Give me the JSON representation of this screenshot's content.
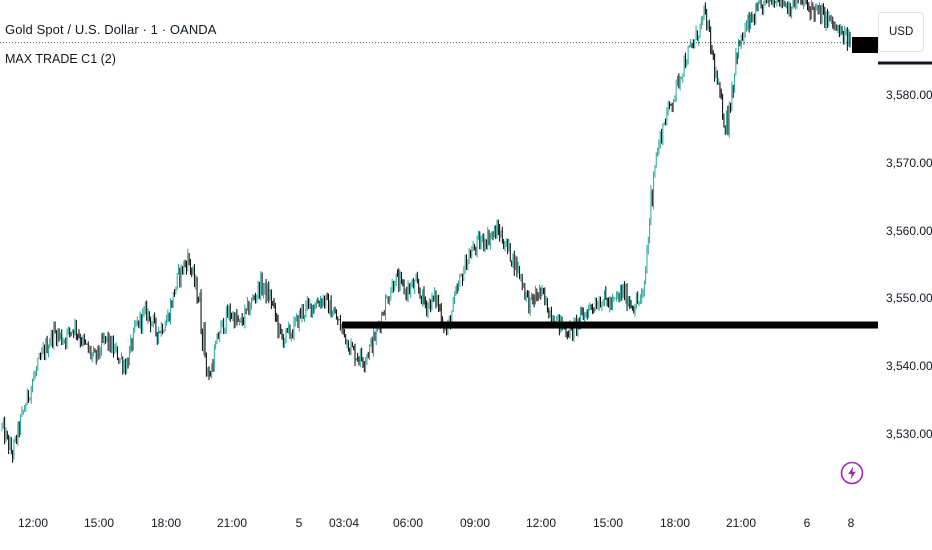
{
  "header": {
    "symbol_title": "Gold Spot / U.S. Dollar · 1 · OANDA",
    "indicator_label": "MAX TRADE C1 (2)"
  },
  "price_axis": {
    "currency": "USD",
    "labels": [
      "3,580.000",
      "3,570.000",
      "3,560.000",
      "3,550.000",
      "3,540.000",
      "3,530.000"
    ]
  },
  "time_axis": {
    "labels": [
      "12:00",
      "15:00",
      "18:00",
      "21:00",
      "5",
      "03:04",
      "06:00",
      "09:00",
      "12:00",
      "15:00",
      "18:00",
      "21:00",
      "6",
      "8"
    ]
  },
  "colors": {
    "up_candle": "#26a69a",
    "down_candle": "#000000",
    "level_line": "#000000",
    "icon_accent": "#9c27b0"
  },
  "icons": {
    "lightning": "lightning-icon"
  },
  "chart_data": {
    "type": "line",
    "ylim": [
      3522,
      3595
    ],
    "y_ticks": [
      3580,
      3570,
      3560,
      3550,
      3540,
      3530
    ],
    "x_ticks": [
      "12:00",
      "15:00",
      "18:00",
      "21:00",
      "5",
      "03:04",
      "06:00",
      "09:00",
      "12:00",
      "15:00",
      "18:00",
      "21:00",
      "6",
      "8"
    ],
    "series": [
      {
        "values": [
          3531,
          3527,
          3533,
          3538,
          3542,
          3545,
          3544,
          3546,
          3543,
          3541,
          3544,
          3542,
          3540,
          3546,
          3548,
          3545,
          3547,
          3553,
          3556,
          3550,
          3538,
          3545,
          3548,
          3546,
          3549,
          3552,
          3550,
          3544,
          3545,
          3548,
          3549,
          3550,
          3548,
          3545,
          3542,
          3541,
          3544,
          3549,
          3553,
          3551,
          3552,
          3549,
          3550,
          3545,
          3551,
          3556,
          3558,
          3559,
          3560,
          3557,
          3554,
          3549,
          3551,
          3548,
          3546,
          3545,
          3547,
          3549,
          3550,
          3549,
          3551,
          3549,
          3550,
          3569,
          3576,
          3580,
          3585,
          3588,
          3592,
          3583,
          3575,
          3586,
          3590,
          3592,
          3594,
          3595,
          3593,
          3594,
          3593,
          3592,
          3591,
          3589,
          3588
        ],
        "last_value": 3588
      }
    ],
    "levels": [
      {
        "value": 3546,
        "from_time": "03:04"
      },
      {
        "value": 3587.5,
        "from_time": "6"
      }
    ],
    "grid": false
  }
}
